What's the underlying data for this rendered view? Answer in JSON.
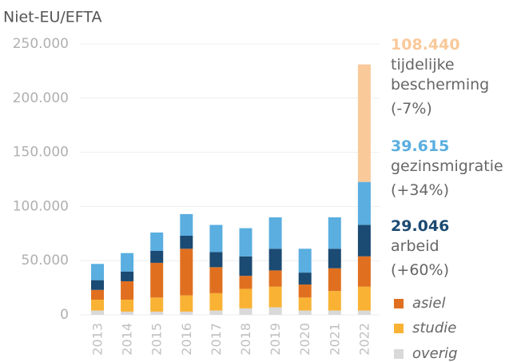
{
  "chart_data": {
    "type": "stacked_bar",
    "title": "Niet-EU/EFTA",
    "categories": [
      "2013",
      "2014",
      "2015",
      "2016",
      "2017",
      "2018",
      "2019",
      "2020",
      "2021",
      "2022"
    ],
    "series": [
      {
        "name": "overig",
        "color": "#d9d9d9",
        "values": [
          4000,
          3000,
          3000,
          3000,
          4000,
          6000,
          7000,
          4000,
          4000,
          4000
        ]
      },
      {
        "name": "studie",
        "color": "#f9b233",
        "values": [
          10000,
          11000,
          13000,
          15000,
          16000,
          18000,
          19000,
          12000,
          18000,
          22000
        ]
      },
      {
        "name": "asiel",
        "color": "#e07020",
        "values": [
          9000,
          17000,
          32000,
          43000,
          24000,
          12000,
          15000,
          12000,
          21000,
          28000
        ]
      },
      {
        "name": "arbeid",
        "color": "#1b4a72",
        "values": [
          9000,
          9000,
          11000,
          12000,
          14000,
          18000,
          20000,
          11000,
          18000,
          29046
        ],
        "value_labels": [
          null,
          null,
          null,
          null,
          null,
          null,
          null,
          null,
          null,
          "29.046"
        ],
        "change": "(+60%)"
      },
      {
        "name": "gezinsmigratie",
        "color": "#5aaee0",
        "values": [
          15000,
          17000,
          17000,
          20000,
          25000,
          26000,
          29000,
          22000,
          29000,
          39615
        ],
        "value_labels": [
          null,
          null,
          null,
          null,
          null,
          null,
          null,
          null,
          null,
          "39.615"
        ],
        "change": "(+34%)"
      },
      {
        "name": "tijdelijke bescherming",
        "color": "#f9c99a",
        "values": [
          null,
          null,
          null,
          null,
          null,
          null,
          null,
          null,
          null,
          108440
        ],
        "value_labels": [
          null,
          null,
          null,
          null,
          null,
          null,
          null,
          null,
          null,
          "108.440"
        ],
        "change": "(-7%)"
      }
    ],
    "ylim": [
      0,
      250000
    ],
    "yticks": [
      0,
      {
        "value": 50000,
        "label": "50.000"
      },
      {
        "value": 100000,
        "label": "100.000"
      },
      {
        "value": 150000,
        "label": "150.000"
      },
      {
        "value": 200000,
        "label": "200.000"
      },
      {
        "value": 250000,
        "label": "250.000"
      }
    ],
    "grid": true
  }
}
